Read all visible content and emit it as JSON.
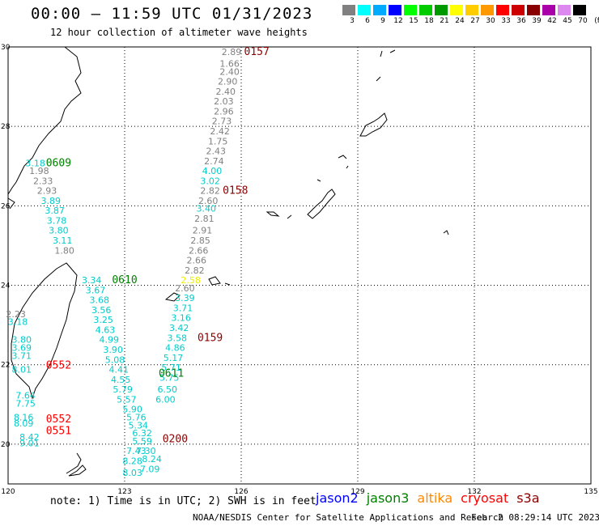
{
  "header": {
    "title": "00:00 — 11:59 UTC 01/31/2023",
    "subtitle": "12 hour collection of altimeter wave heights"
  },
  "legend": {
    "unit": "(ft)",
    "items": [
      {
        "label": "3",
        "color": "#808080"
      },
      {
        "label": "6",
        "color": "#00ffff"
      },
      {
        "label": "9",
        "color": "#00aaff"
      },
      {
        "label": "12",
        "color": "#0000ff"
      },
      {
        "label": "15",
        "color": "#00ff00"
      },
      {
        "label": "18",
        "color": "#00cc00"
      },
      {
        "label": "21",
        "color": "#009900"
      },
      {
        "label": "24",
        "color": "#ffff00"
      },
      {
        "label": "27",
        "color": "#ffcc00"
      },
      {
        "label": "30",
        "color": "#ff9900"
      },
      {
        "label": "33",
        "color": "#ff0000"
      },
      {
        "label": "36",
        "color": "#cc0000"
      },
      {
        "label": "39",
        "color": "#880000"
      },
      {
        "label": "42",
        "color": "#aa00aa"
      },
      {
        "label": "45",
        "color": "#dd88ee"
      },
      {
        "label": "70",
        "color": "#000000"
      }
    ]
  },
  "axes": {
    "lat_labels": [
      "30",
      "28",
      "26",
      "24",
      "22",
      "20"
    ],
    "lon_labels": [
      "120",
      "123",
      "126",
      "129",
      "132",
      "135"
    ]
  },
  "tracks": [
    {
      "time": "0157",
      "color": "#8b0000",
      "lon": 126.4,
      "lat": 29.8
    },
    {
      "time": "0158",
      "color": "#8b0000",
      "lon": 125.85,
      "lat": 26.3
    },
    {
      "time": "0609",
      "color": "#008000",
      "lon": 121.3,
      "lat": 27.0
    },
    {
      "time": "0610",
      "color": "#008000",
      "lon": 123.0,
      "lat": 24.05
    },
    {
      "time": "0159",
      "color": "#8b0000",
      "lon": 125.2,
      "lat": 22.6
    },
    {
      "time": "0611",
      "color": "#008000",
      "lon": 124.2,
      "lat": 21.7
    },
    {
      "time": "0552",
      "color": "#ff0000",
      "lon": 121.3,
      "lat": 21.9
    },
    {
      "time": "0552",
      "color": "#ff0000",
      "lon": 121.3,
      "lat": 20.55
    },
    {
      "time": "0551",
      "color": "#ff0000",
      "lon": 121.3,
      "lat": 20.25
    },
    {
      "time": "0200",
      "color": "#8b0000",
      "lon": 124.3,
      "lat": 20.05
    }
  ],
  "swh_points": [
    {
      "v": "2.89",
      "c": "#808080",
      "lon": 125.75,
      "lat": 29.8
    },
    {
      "v": "1.66",
      "c": "#808080",
      "lon": 125.7,
      "lat": 29.5
    },
    {
      "v": "2.40",
      "c": "#808080",
      "lon": 125.7,
      "lat": 29.3
    },
    {
      "v": "2.90",
      "c": "#808080",
      "lon": 125.65,
      "lat": 29.05
    },
    {
      "v": "2.40",
      "c": "#808080",
      "lon": 125.6,
      "lat": 28.8
    },
    {
      "v": "2.03",
      "c": "#808080",
      "lon": 125.55,
      "lat": 28.55
    },
    {
      "v": "2.96",
      "c": "#808080",
      "lon": 125.55,
      "lat": 28.3
    },
    {
      "v": "2.73",
      "c": "#808080",
      "lon": 125.5,
      "lat": 28.05
    },
    {
      "v": "2.42",
      "c": "#808080",
      "lon": 125.45,
      "lat": 27.8
    },
    {
      "v": "1.75",
      "c": "#808080",
      "lon": 125.4,
      "lat": 27.55
    },
    {
      "v": "2.43",
      "c": "#808080",
      "lon": 125.35,
      "lat": 27.3
    },
    {
      "v": "2.74",
      "c": "#808080",
      "lon": 125.3,
      "lat": 27.05
    },
    {
      "v": "4.00",
      "c": "#00cccc",
      "lon": 125.25,
      "lat": 26.8
    },
    {
      "v": "3.02",
      "c": "#00cccc",
      "lon": 125.2,
      "lat": 26.55
    },
    {
      "v": "2.82",
      "c": "#808080",
      "lon": 125.2,
      "lat": 26.3
    },
    {
      "v": "2.60",
      "c": "#808080",
      "lon": 125.15,
      "lat": 26.05
    },
    {
      "v": "3.40",
      "c": "#00cccc",
      "lon": 125.1,
      "lat": 25.85
    },
    {
      "v": "2.81",
      "c": "#808080",
      "lon": 125.05,
      "lat": 25.6
    },
    {
      "v": "2.91",
      "c": "#808080",
      "lon": 125.0,
      "lat": 25.3
    },
    {
      "v": "2.85",
      "c": "#808080",
      "lon": 124.95,
      "lat": 25.05
    },
    {
      "v": "2.66",
      "c": "#808080",
      "lon": 124.9,
      "lat": 24.8
    },
    {
      "v": "2.66",
      "c": "#808080",
      "lon": 124.85,
      "lat": 24.55
    },
    {
      "v": "2.82",
      "c": "#808080",
      "lon": 124.8,
      "lat": 24.3
    },
    {
      "v": "2.58",
      "c": "#eeee00",
      "lon": 124.7,
      "lat": 24.05
    },
    {
      "v": "2.60",
      "c": "#808080",
      "lon": 124.55,
      "lat": 23.85
    },
    {
      "v": "3.39",
      "c": "#00cccc",
      "lon": 124.55,
      "lat": 23.6
    },
    {
      "v": "3.71",
      "c": "#00cccc",
      "lon": 124.5,
      "lat": 23.35
    },
    {
      "v": "3.16",
      "c": "#00cccc",
      "lon": 124.45,
      "lat": 23.1
    },
    {
      "v": "3.42",
      "c": "#00cccc",
      "lon": 124.4,
      "lat": 22.85
    },
    {
      "v": "3.58",
      "c": "#00cccc",
      "lon": 124.35,
      "lat": 22.6
    },
    {
      "v": "4.86",
      "c": "#00cccc",
      "lon": 124.3,
      "lat": 22.35
    },
    {
      "v": "5.17",
      "c": "#00cccc",
      "lon": 124.25,
      "lat": 22.1
    },
    {
      "v": "5.71",
      "c": "#00cccc",
      "lon": 124.2,
      "lat": 21.85
    },
    {
      "v": "5.75",
      "c": "#00cccc",
      "lon": 124.15,
      "lat": 21.6
    },
    {
      "v": "6.50",
      "c": "#00cccc",
      "lon": 124.1,
      "lat": 21.3
    },
    {
      "v": "6.00",
      "c": "#00cccc",
      "lon": 124.05,
      "lat": 21.05
    },
    {
      "v": "3.18",
      "c": "#00cccc",
      "lon": 120.7,
      "lat": 27.0
    },
    {
      "v": "1.98",
      "c": "#808080",
      "lon": 120.8,
      "lat": 26.8
    },
    {
      "v": "2.33",
      "c": "#808080",
      "lon": 120.9,
      "lat": 26.55
    },
    {
      "v": "2.93",
      "c": "#808080",
      "lon": 121.0,
      "lat": 26.3
    },
    {
      "v": "3.89",
      "c": "#00cccc",
      "lon": 121.1,
      "lat": 26.05
    },
    {
      "v": "3.87",
      "c": "#00cccc",
      "lon": 121.2,
      "lat": 25.8
    },
    {
      "v": "3.78",
      "c": "#00cccc",
      "lon": 121.25,
      "lat": 25.55
    },
    {
      "v": "3.80",
      "c": "#00cccc",
      "lon": 121.3,
      "lat": 25.3
    },
    {
      "v": "3.11",
      "c": "#00cccc",
      "lon": 121.4,
      "lat": 25.05
    },
    {
      "v": "1.80",
      "c": "#808080",
      "lon": 121.45,
      "lat": 24.8
    },
    {
      "v": "3.34",
      "c": "#00cccc",
      "lon": 122.15,
      "lat": 24.05
    },
    {
      "v": "3.67",
      "c": "#00cccc",
      "lon": 122.25,
      "lat": 23.8
    },
    {
      "v": "3.68",
      "c": "#00cccc",
      "lon": 122.35,
      "lat": 23.55
    },
    {
      "v": "3.56",
      "c": "#00cccc",
      "lon": 122.4,
      "lat": 23.3
    },
    {
      "v": "3.25",
      "c": "#00cccc",
      "lon": 122.45,
      "lat": 23.05
    },
    {
      "v": "4.63",
      "c": "#00cccc",
      "lon": 122.5,
      "lat": 22.8
    },
    {
      "v": "4.99",
      "c": "#00cccc",
      "lon": 122.6,
      "lat": 22.55
    },
    {
      "v": "3.90",
      "c": "#00cccc",
      "lon": 122.7,
      "lat": 22.3
    },
    {
      "v": "5.08",
      "c": "#00cccc",
      "lon": 122.75,
      "lat": 22.05
    },
    {
      "v": "4.41",
      "c": "#00cccc",
      "lon": 122.85,
      "lat": 21.8
    },
    {
      "v": "4.55",
      "c": "#00cccc",
      "lon": 122.9,
      "lat": 21.55
    },
    {
      "v": "5.79",
      "c": "#00cccc",
      "lon": 122.95,
      "lat": 21.3
    },
    {
      "v": "5.57",
      "c": "#00cccc",
      "lon": 123.05,
      "lat": 21.05
    },
    {
      "v": "5.90",
      "c": "#00cccc",
      "lon": 123.2,
      "lat": 20.8
    },
    {
      "v": "5.76",
      "c": "#00cccc",
      "lon": 123.3,
      "lat": 20.6
    },
    {
      "v": "5.34",
      "c": "#00cccc",
      "lon": 123.35,
      "lat": 20.4
    },
    {
      "v": "6.32",
      "c": "#00cccc",
      "lon": 123.45,
      "lat": 20.2
    },
    {
      "v": "5.59",
      "c": "#00cccc",
      "lon": 123.45,
      "lat": 20.0
    },
    {
      "v": "7.30",
      "c": "#00cccc",
      "lon": 123.55,
      "lat": 19.75
    },
    {
      "v": "7.43",
      "c": "#00cccc",
      "lon": 123.3,
      "lat": 19.75
    },
    {
      "v": "8.24",
      "c": "#00cccc",
      "lon": 123.7,
      "lat": 19.55
    },
    {
      "v": "8.28",
      "c": "#00cccc",
      "lon": 123.2,
      "lat": 19.5
    },
    {
      "v": "7.09",
      "c": "#00cccc",
      "lon": 123.65,
      "lat": 19.3
    },
    {
      "v": "8.03",
      "c": "#00cccc",
      "lon": 123.2,
      "lat": 19.2
    },
    {
      "v": "2.23",
      "c": "#808080",
      "lon": 120.2,
      "lat": 23.2
    },
    {
      "v": "3.18",
      "c": "#00cccc",
      "lon": 120.25,
      "lat": 23.0
    },
    {
      "v": "3.80",
      "c": "#00cccc",
      "lon": 120.35,
      "lat": 22.55
    },
    {
      "v": "3.69",
      "c": "#00cccc",
      "lon": 120.35,
      "lat": 22.35
    },
    {
      "v": "3.71",
      "c": "#00cccc",
      "lon": 120.35,
      "lat": 22.15
    },
    {
      "v": "8.01",
      "c": "#00cccc",
      "lon": 120.35,
      "lat": 21.8
    },
    {
      "v": "7.64",
      "c": "#00cccc",
      "lon": 120.45,
      "lat": 21.15
    },
    {
      "v": "7.75",
      "c": "#00cccc",
      "lon": 120.45,
      "lat": 20.95
    },
    {
      "v": "8.16",
      "c": "#00cccc",
      "lon": 120.4,
      "lat": 20.6
    },
    {
      "v": "8.09",
      "c": "#00cccc",
      "lon": 120.4,
      "lat": 20.45
    },
    {
      "v": "8.42",
      "c": "#00cccc",
      "lon": 120.55,
      "lat": 20.1
    },
    {
      "v": "9.01",
      "c": "#00cccc",
      "lon": 120.55,
      "lat": 19.95
    }
  ],
  "footer": {
    "note": "note: 1) Time is in UTC; 2) SWH is in feet",
    "satellites": [
      {
        "name": "jason2",
        "color": "#0000ff"
      },
      {
        "name": "jason3",
        "color": "#008000"
      },
      {
        "name": "altika",
        "color": "#ff8800"
      },
      {
        "name": "cryosat",
        "color": "#ff0000"
      },
      {
        "name": "s3a",
        "color": "#8b0000"
      }
    ],
    "credit": "NOAA/NESDIS Center for Satellite Applications and Research",
    "timestamp": "Feb  2 08:29:14 UTC 2023"
  }
}
